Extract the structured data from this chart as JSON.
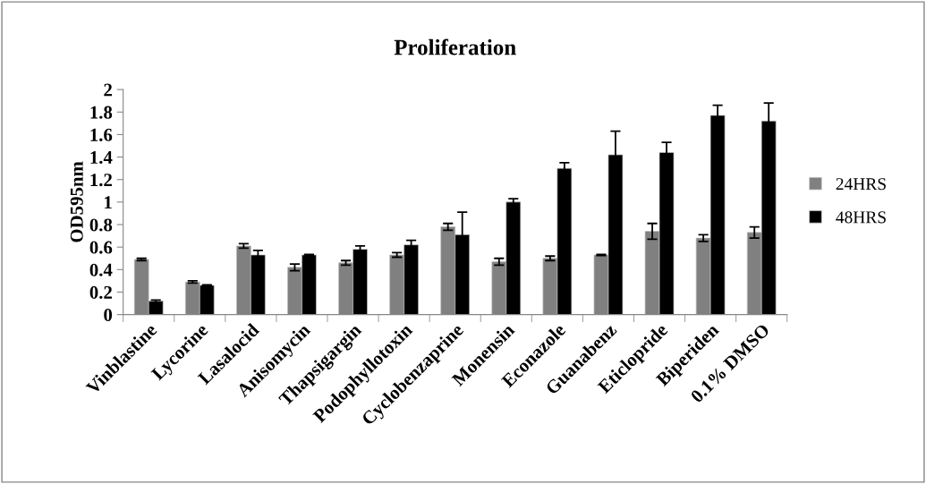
{
  "chart_data": {
    "type": "bar",
    "title": "Proliferation",
    "ylabel": "OD595nm",
    "categories": [
      "Vinblastine",
      "Lycorine",
      "Lasalocid",
      "Anisomycin",
      "Thapsigargin",
      "Podophyllotoxin",
      "Cyclobenzaprine",
      "Monensin",
      "Econazole",
      "Guanabenz",
      "Eticlopride",
      "Biperiden",
      "0.1% DMSO"
    ],
    "series": [
      {
        "name": "24HRS",
        "color": "#808080",
        "values": [
          0.49,
          0.29,
          0.61,
          0.42,
          0.46,
          0.53,
          0.78,
          0.47,
          0.5,
          0.53,
          0.74,
          0.68,
          0.73
        ],
        "errors": [
          0.01,
          0.01,
          0.02,
          0.03,
          0.02,
          0.02,
          0.03,
          0.03,
          0.02,
          0.005,
          0.07,
          0.03,
          0.05
        ]
      },
      {
        "name": "48HRS",
        "color": "#000000",
        "values": [
          0.12,
          0.26,
          0.53,
          0.53,
          0.58,
          0.62,
          0.71,
          1.0,
          1.3,
          1.42,
          1.44,
          1.77,
          1.72
        ],
        "errors": [
          0.01,
          0.005,
          0.04,
          0.005,
          0.03,
          0.04,
          0.2,
          0.03,
          0.05,
          0.21,
          0.09,
          0.09,
          0.16
        ]
      }
    ],
    "ylim": [
      0,
      2
    ],
    "yticks": [
      0,
      0.2,
      0.4,
      0.6,
      0.8,
      1,
      1.2,
      1.4,
      1.6,
      1.8,
      2
    ],
    "grid": false,
    "legend": "right"
  }
}
